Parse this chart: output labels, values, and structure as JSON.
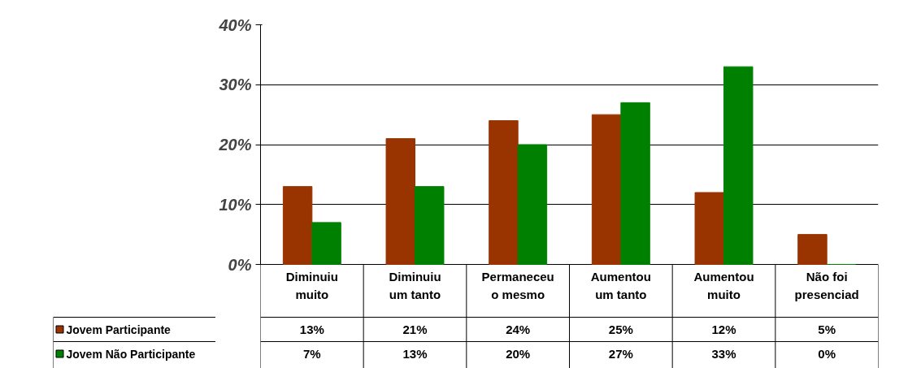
{
  "chart_data": {
    "type": "bar",
    "categories": [
      "Diminuiu muito",
      "Diminuiu um tanto",
      "Permaneceu o mesmo",
      "Aumentou um tanto",
      "Aumentou muito",
      "Não foi presenciad"
    ],
    "series": [
      {
        "name": "Jovem Participante",
        "color": "#993300",
        "values": [
          13,
          21,
          24,
          25,
          12,
          5
        ],
        "value_labels": [
          "13%",
          "21%",
          "24%",
          "25%",
          "12%",
          "5%"
        ]
      },
      {
        "name": "Jovem Não Participante",
        "color": "#008000",
        "values": [
          7,
          13,
          20,
          27,
          33,
          0
        ],
        "value_labels": [
          "7%",
          "13%",
          "20%",
          "27%",
          "33%",
          "0%"
        ]
      }
    ],
    "ylim": [
      0,
      40
    ],
    "yticks": [
      {
        "value": 0,
        "label": "0%"
      },
      {
        "value": 10,
        "label": "10%"
      },
      {
        "value": 20,
        "label": "20%"
      },
      {
        "value": 30,
        "label": "30%"
      },
      {
        "value": 40,
        "label": "40%"
      }
    ],
    "grid": "y",
    "legend": "bottom"
  }
}
